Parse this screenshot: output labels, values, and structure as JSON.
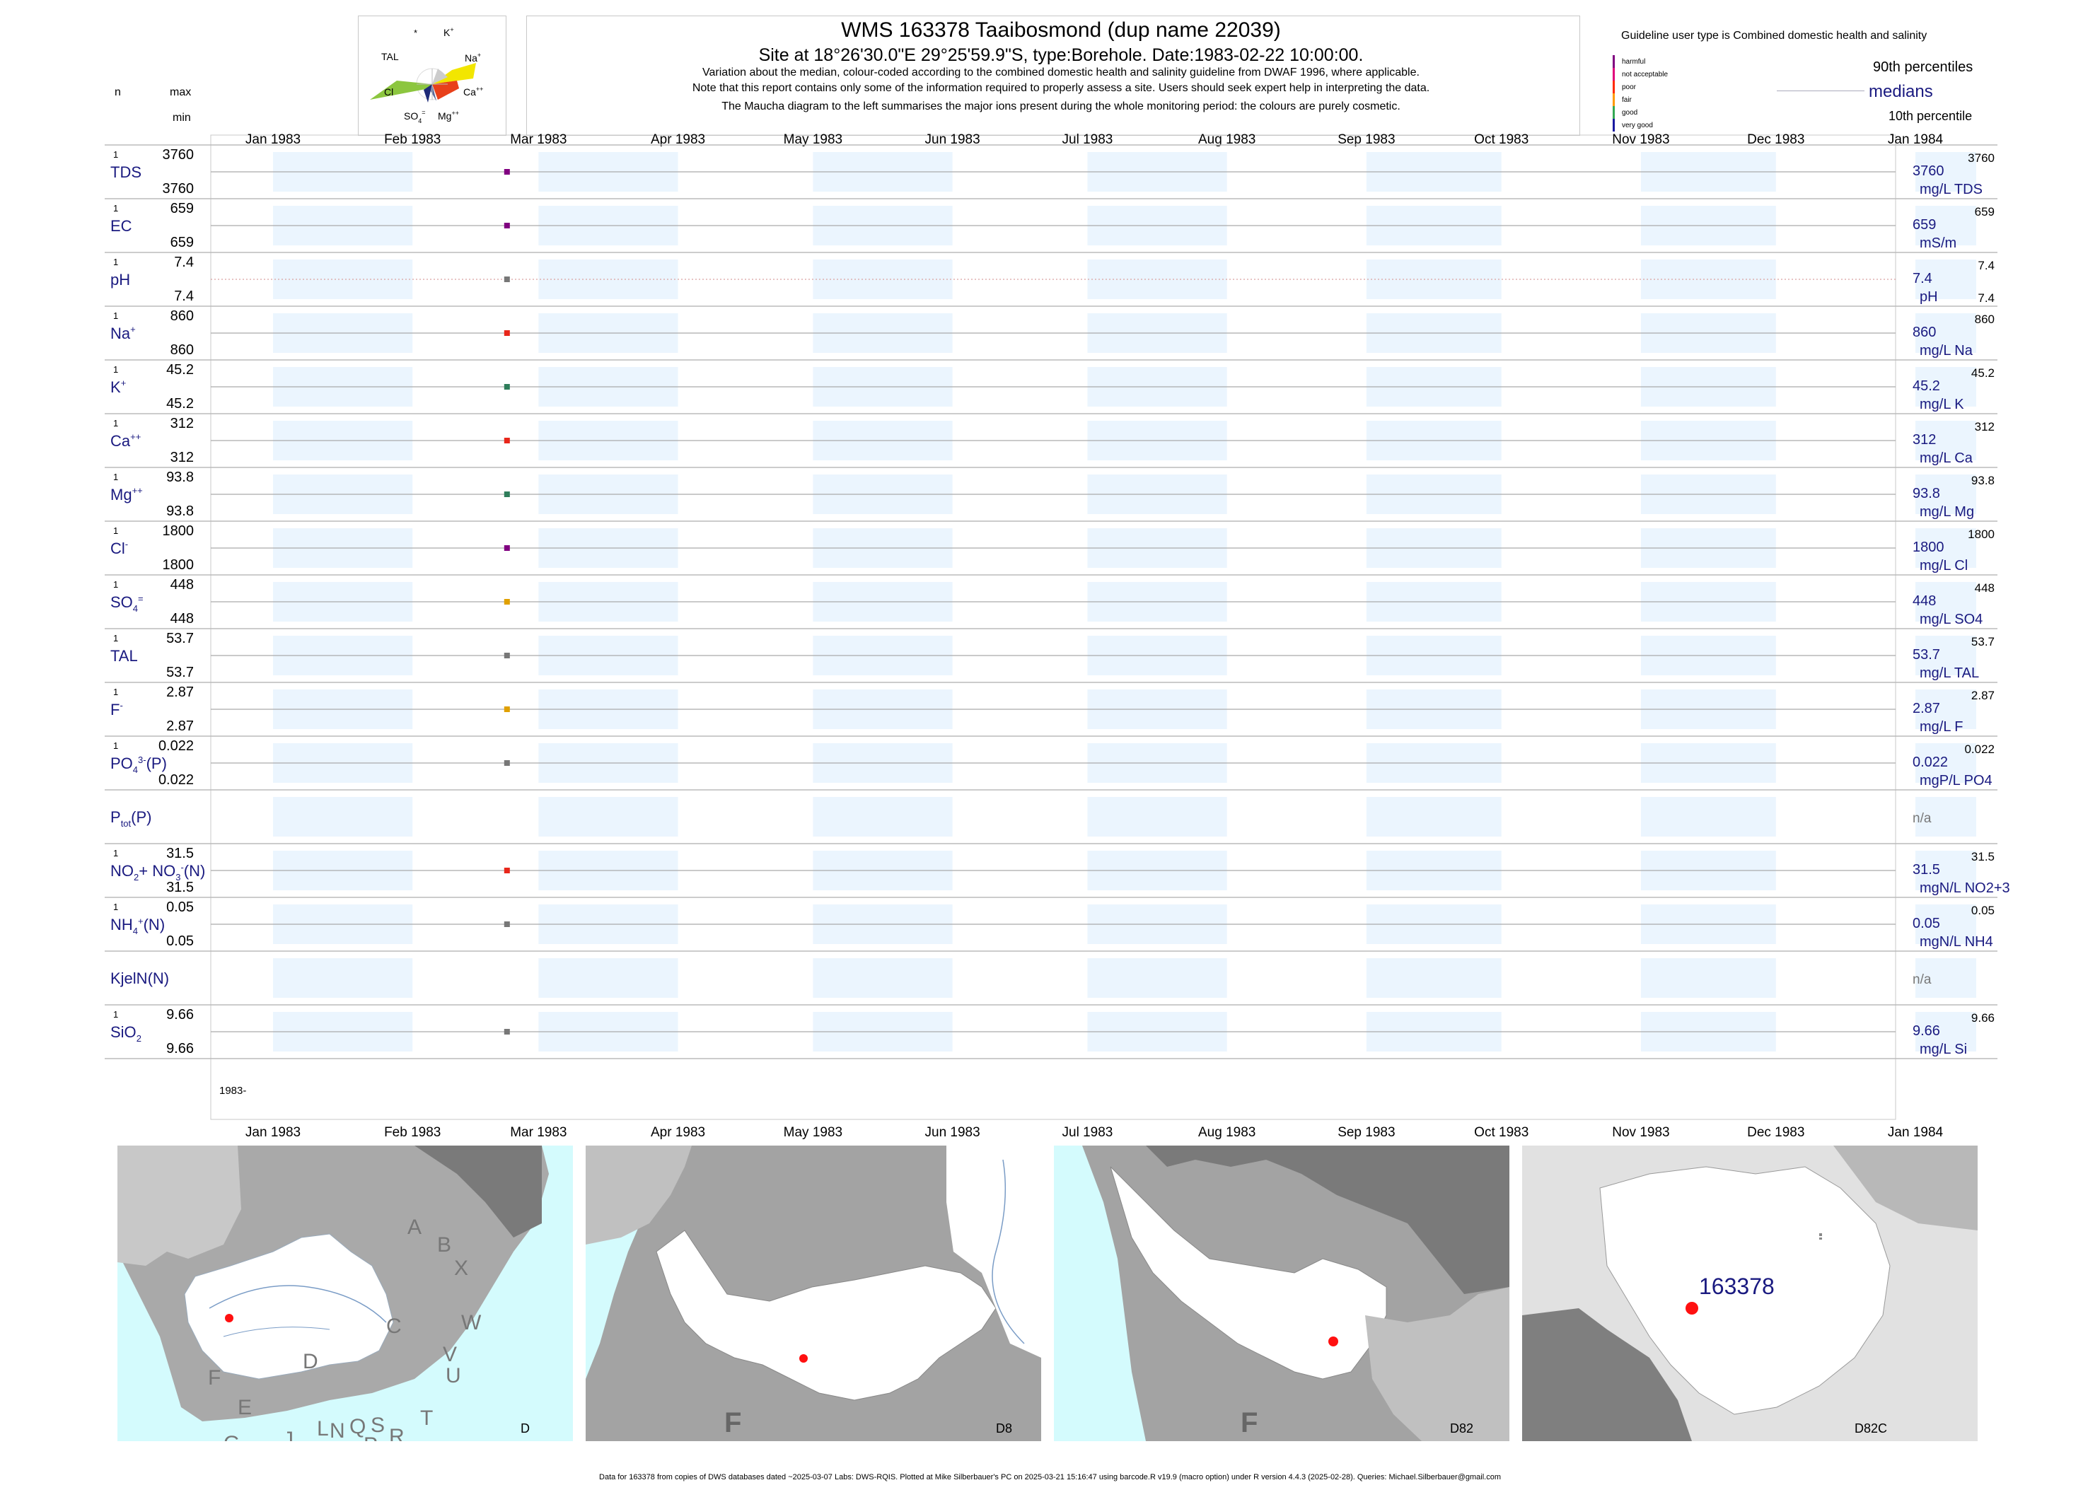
{
  "header": {
    "title": "WMS 163378  Taaibosmond (dup name 22039)",
    "subtitle": "Site at 18°26'30.0\"E 29°25'59.9\"S, type:Borehole. Date:1983-02-22 10:00:00.",
    "note1": "Variation about the median,  colour-coded according to the combined domestic health and salinity guideline from DWAF 1996, where applicable.",
    "note2": "Note that this report contains only some of the information required to properly assess a site. Users should seek expert help in interpreting the data.",
    "note3": "The Maucha diagram to the left summarises the major ions present during the whole monitoring period: the colours are purely cosmetic."
  },
  "col_headers": {
    "n": "n",
    "max": "max",
    "min": "min"
  },
  "maucha": {
    "labels": {
      "star": "*",
      "k": "K",
      "k_sup": "+",
      "tal": "TAL",
      "na": "Na",
      "na_sup": "+",
      "cl": "Cl",
      "ca": "Ca",
      "ca_sup": "++",
      "so4": "SO",
      "so4_sub": "4",
      "so4_sup": "=",
      "mg": "Mg",
      "mg_sup": "++"
    },
    "colors": {
      "na": "#f2e600",
      "ca": "#e8401a",
      "cl": "#8cc63f",
      "so4": "#1e2a78",
      "k": "#cccccc",
      "mg": "#5a6a9a",
      "tal": "#ffffff"
    }
  },
  "legend": {
    "guideline_text": "Guideline user type is Combined domestic health and salinity",
    "classes": [
      {
        "label": "harmful",
        "color": "#800080"
      },
      {
        "label": "not acceptable",
        "color": "#e0007a"
      },
      {
        "label": "poor",
        "color": "#ff2a00"
      },
      {
        "label": "fair",
        "color": "#ff9900"
      },
      {
        "label": "good",
        "color": "#34a853"
      },
      {
        "label": "very good",
        "color": "#1a1aa0"
      }
    ],
    "p90": "90th percentiles",
    "medians": "medians",
    "p10": "10th percentile"
  },
  "chart_data": {
    "type": "scatter",
    "x_range": [
      "1983-01-01",
      "1984-01-01"
    ],
    "month_ticks": [
      "Jan 1983",
      "Feb 1983",
      "Mar 1983",
      "Apr 1983",
      "May 1983",
      "Jun 1983",
      "Jul 1983",
      "Aug 1983",
      "Sep 1983",
      "Oct 1983",
      "Nov 1983",
      "Dec 1983",
      "Jan 1984"
    ],
    "sample_date": "1983-02-22",
    "year_label": "1983-",
    "panels": [
      {
        "label": "TDS",
        "n": "1",
        "max": "3760",
        "min": "3760",
        "value": 3760,
        "median_text": "3760",
        "p90_text": "3760",
        "unit": "mg/L TDS",
        "color": "#800080"
      },
      {
        "label": "EC",
        "n": "1",
        "max": "659",
        "min": "659",
        "value": 659,
        "median_text": "659",
        "p90_text": "659",
        "unit": "mS/m",
        "color": "#800080"
      },
      {
        "label": "pH",
        "n": "1",
        "max": "7.4",
        "min": "7.4",
        "value": 7.4,
        "median_text": "7.4",
        "p90_text": "7.4",
        "p10_text": "7.4",
        "unit": "pH",
        "color": "#777777"
      },
      {
        "label": "Na",
        "sup": "+",
        "n": "1",
        "max": "860",
        "min": "860",
        "value": 860,
        "median_text": "860",
        "p90_text": "860",
        "unit": "mg/L Na",
        "color": "#e8261a"
      },
      {
        "label": "K",
        "sup": "+",
        "n": "1",
        "max": "45.2",
        "min": "45.2",
        "value": 45.2,
        "median_text": "45.2",
        "p90_text": "45.2",
        "unit": "mg/L K",
        "color": "#2e7d5a"
      },
      {
        "label": "Ca",
        "sup": "++",
        "n": "1",
        "max": "312",
        "min": "312",
        "value": 312,
        "median_text": "312",
        "p90_text": "312",
        "unit": "mg/L Ca",
        "color": "#e8261a"
      },
      {
        "label": "Mg",
        "sup": "++",
        "n": "1",
        "max": "93.8",
        "min": "93.8",
        "value": 93.8,
        "median_text": "93.8",
        "p90_text": "93.8",
        "unit": "mg/L Mg",
        "color": "#2e7d5a"
      },
      {
        "label": "Cl",
        "sup": "-",
        "n": "1",
        "max": "1800",
        "min": "1800",
        "value": 1800,
        "median_text": "1800",
        "p90_text": "1800",
        "unit": "mg/L Cl",
        "color": "#800080"
      },
      {
        "label": "SO",
        "sub": "4",
        "sup": "=",
        "n": "1",
        "max": "448",
        "min": "448",
        "value": 448,
        "median_text": "448",
        "p90_text": "448",
        "unit": "mg/L SO4",
        "color": "#e0a000"
      },
      {
        "label": "TAL",
        "n": "1",
        "max": "53.7",
        "min": "53.7",
        "value": 53.7,
        "median_text": "53.7",
        "p90_text": "53.7",
        "unit": "mg/L TAL",
        "color": "#777777"
      },
      {
        "label": "F",
        "sup": "-",
        "n": "1",
        "max": "2.87",
        "min": "2.87",
        "value": 2.87,
        "median_text": "2.87",
        "p90_text": "2.87",
        "unit": "mg/L F",
        "color": "#e0a000"
      },
      {
        "label": "PO",
        "sub": "4",
        "sup": "3-",
        "suffix": "(P)",
        "n": "1",
        "max": "0.022",
        "min": "0.022",
        "value": 0.022,
        "median_text": "0.022",
        "p90_text": "0.022",
        "unit": "mgP/L PO4",
        "color": "#777777"
      },
      {
        "label": "P",
        "sub": "tot",
        "suffix": "(P)",
        "na_text": "n/a"
      },
      {
        "label": "NO",
        "sub": "2",
        "label2": "+ NO",
        "sub2": "3",
        "sup2": "-",
        "suffix": "(N)",
        "n": "1",
        "max": "31.5",
        "min": "31.5",
        "value": 31.5,
        "median_text": "31.5",
        "p90_text": "31.5",
        "unit": "mgN/L NO2+3",
        "color": "#e8261a"
      },
      {
        "label": "NH",
        "sub": "4",
        "sup": "+",
        "suffix": "(N)",
        "n": "1",
        "max": "0.05",
        "min": "0.05",
        "value": 0.05,
        "median_text": "0.05",
        "p90_text": "0.05",
        "unit": "mgN/L NH4",
        "color": "#777777"
      },
      {
        "label": "KjelN(N)",
        "na_text": "n/a"
      },
      {
        "label": "SiO",
        "sub": "2",
        "n": "1",
        "max": "9.66",
        "min": "9.66",
        "value": 9.66,
        "median_text": "9.66",
        "p90_text": "9.66",
        "unit": "mg/L Si",
        "color": "#777777"
      }
    ]
  },
  "maps": {
    "map1": {
      "caption": "D",
      "regions": [
        "A",
        "B",
        "X",
        "C",
        "W",
        "D",
        "V",
        "U",
        "T",
        "F",
        "E",
        "G",
        "H",
        "J",
        "K",
        "L",
        "N",
        "Q",
        "S",
        "R",
        "M",
        "P"
      ]
    },
    "map2": {
      "caption": "D8",
      "region": "F"
    },
    "map3": {
      "caption": "D82",
      "region": "F"
    },
    "map4": {
      "caption": "D82C",
      "site_label": "163378"
    }
  },
  "footer": "Data for 163378 from copies of DWS databases dated ~2025-03-07 Labs: DWS-RQIS. Plotted at Mike Silberbauer's PC on 2025-03-21 15:16:47 using barcode.R v19.9 (macro option) under R version 4.4.3 (2025-02-28). Queries: Michael.Silberbauer@gmail.com"
}
